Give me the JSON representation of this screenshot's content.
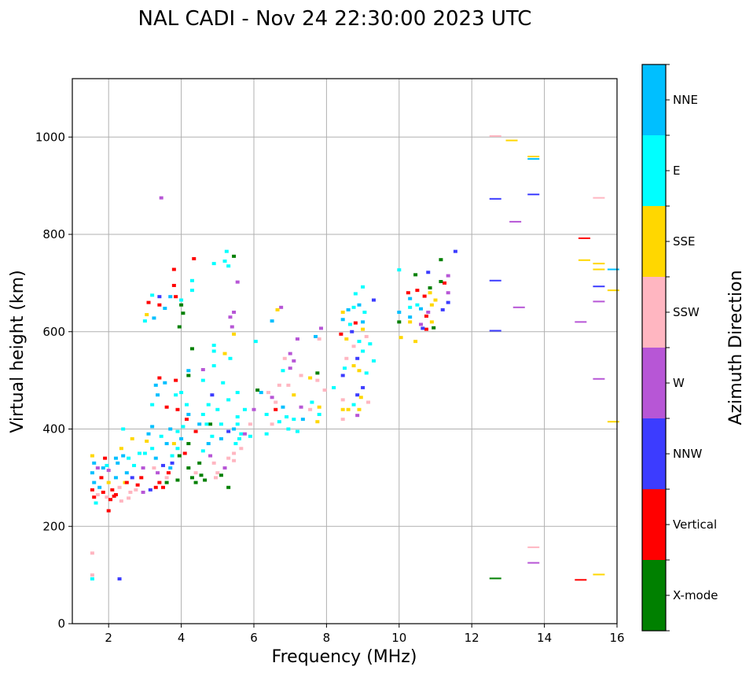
{
  "chart_data": {
    "type": "scatter",
    "title": "NAL CADI - Nov 24 22:30:00 2023 UTC",
    "xlabel": "Frequency (MHz)",
    "ylabel": "Virtual height (km)",
    "xlim": [
      1,
      16
    ],
    "ylim": [
      0,
      1120
    ],
    "xticks": [
      2,
      4,
      6,
      8,
      10,
      12,
      14,
      16
    ],
    "yticks": [
      0,
      200,
      400,
      600,
      800,
      1000
    ],
    "grid": true,
    "colorbar": {
      "label": "Azimuth Direction",
      "categories": [
        {
          "name": "X-mode",
          "color": "#008000"
        },
        {
          "name": "Vertical",
          "color": "#ff0000"
        },
        {
          "name": "NNW",
          "color": "#3c3cff"
        },
        {
          "name": "W",
          "color": "#b756d6"
        },
        {
          "name": "SSW",
          "color": "#ffb6c1"
        },
        {
          "name": "SSE",
          "color": "#ffd700"
        },
        {
          "name": "E",
          "color": "#00ffff"
        },
        {
          "name": "NNE",
          "color": "#00bfff"
        }
      ]
    },
    "point_format": [
      "frequency_mhz",
      "height_km",
      "category_index"
    ],
    "points": [
      [
        1.55,
        145,
        4
      ],
      [
        1.55,
        100,
        4
      ],
      [
        1.55,
        92,
        6
      ],
      [
        2.3,
        92,
        2
      ],
      [
        3.45,
        875,
        3
      ],
      [
        12.65,
        1002,
        4
      ],
      [
        13.1,
        993,
        5
      ],
      [
        13.7,
        960,
        5
      ],
      [
        13.7,
        955,
        7
      ],
      [
        12.65,
        873,
        2
      ],
      [
        13.7,
        882,
        2
      ],
      [
        15.5,
        875,
        4
      ],
      [
        13.2,
        826,
        3
      ],
      [
        15.1,
        792,
        1
      ],
      [
        15.1,
        747,
        5
      ],
      [
        15.5,
        740,
        5
      ],
      [
        15.5,
        728,
        5
      ],
      [
        15.9,
        728,
        7
      ],
      [
        15.5,
        693,
        2
      ],
      [
        15.9,
        685,
        5
      ],
      [
        12.65,
        705,
        2
      ],
      [
        13.3,
        650,
        3
      ],
      [
        15.5,
        662,
        3
      ],
      [
        15.0,
        620,
        3
      ],
      [
        12.65,
        602,
        2
      ],
      [
        15.5,
        503,
        3
      ],
      [
        15.9,
        415,
        5
      ],
      [
        13.7,
        157,
        4
      ],
      [
        13.7,
        125,
        3
      ],
      [
        12.65,
        93,
        0
      ],
      [
        15.0,
        90,
        1
      ],
      [
        15.5,
        101,
        5
      ],
      [
        11.55,
        765,
        2
      ],
      [
        11.15,
        748,
        0
      ],
      [
        10.45,
        717,
        0
      ],
      [
        10.0,
        727,
        6
      ],
      [
        10.8,
        722,
        2
      ],
      [
        11.35,
        715,
        3
      ],
      [
        11.25,
        700,
        1
      ],
      [
        11.15,
        703,
        0
      ],
      [
        10.85,
        690,
        0
      ],
      [
        10.85,
        680,
        5
      ],
      [
        10.5,
        685,
        1
      ],
      [
        10.25,
        680,
        1
      ],
      [
        10.3,
        668,
        7
      ],
      [
        10.7,
        673,
        1
      ],
      [
        11.0,
        665,
        5
      ],
      [
        11.35,
        660,
        2
      ],
      [
        11.35,
        680,
        3
      ],
      [
        10.5,
        655,
        6
      ],
      [
        10.9,
        655,
        5
      ],
      [
        10.3,
        650,
        6
      ],
      [
        10.6,
        647,
        7
      ],
      [
        11.2,
        645,
        2
      ],
      [
        10.8,
        640,
        3
      ],
      [
        10.0,
        640,
        7
      ],
      [
        10.3,
        630,
        7
      ],
      [
        10.75,
        632,
        1
      ],
      [
        10.3,
        620,
        5
      ],
      [
        10.0,
        620,
        0
      ],
      [
        10.6,
        615,
        3
      ],
      [
        10.75,
        605,
        1
      ],
      [
        10.65,
        607,
        2
      ],
      [
        10.95,
        608,
        0
      ],
      [
        10.45,
        580,
        5
      ],
      [
        10.05,
        588,
        5
      ],
      [
        10.9,
        620,
        5
      ],
      [
        8.45,
        640,
        5
      ],
      [
        8.6,
        645,
        7
      ],
      [
        8.75,
        650,
        6
      ],
      [
        8.9,
        655,
        7
      ],
      [
        9.0,
        692,
        6
      ],
      [
        9.3,
        665,
        2
      ],
      [
        8.8,
        678,
        6
      ],
      [
        9.05,
        640,
        6
      ],
      [
        8.45,
        625,
        7
      ],
      [
        8.65,
        615,
        6
      ],
      [
        8.8,
        618,
        1
      ],
      [
        9.0,
        620,
        7
      ],
      [
        9.0,
        605,
        5
      ],
      [
        8.7,
        600,
        2
      ],
      [
        8.4,
        595,
        1
      ],
      [
        8.55,
        585,
        5
      ],
      [
        9.1,
        590,
        4
      ],
      [
        8.9,
        580,
        6
      ],
      [
        9.2,
        575,
        6
      ],
      [
        8.75,
        570,
        4
      ],
      [
        9.0,
        560,
        6
      ],
      [
        8.85,
        545,
        2
      ],
      [
        9.3,
        540,
        6
      ],
      [
        8.55,
        545,
        4
      ],
      [
        8.75,
        530,
        5
      ],
      [
        8.5,
        525,
        6
      ],
      [
        8.9,
        520,
        5
      ],
      [
        9.1,
        515,
        6
      ],
      [
        8.45,
        510,
        2
      ],
      [
        8.2,
        485,
        6
      ],
      [
        9.0,
        485,
        2
      ],
      [
        8.85,
        470,
        2
      ],
      [
        8.95,
        465,
        5
      ],
      [
        8.45,
        460,
        4
      ],
      [
        8.75,
        450,
        6
      ],
      [
        8.6,
        440,
        5
      ],
      [
        8.45,
        440,
        5
      ],
      [
        8.9,
        440,
        5
      ],
      [
        8.85,
        428,
        3
      ],
      [
        8.45,
        420,
        4
      ],
      [
        9.15,
        455,
        4
      ],
      [
        7.95,
        480,
        4
      ],
      [
        7.85,
        607,
        3
      ],
      [
        7.7,
        590,
        7
      ],
      [
        7.8,
        585,
        4
      ],
      [
        7.2,
        585,
        3
      ],
      [
        6.75,
        650,
        3
      ],
      [
        6.65,
        645,
        5
      ],
      [
        6.5,
        622,
        7
      ],
      [
        7.0,
        555,
        3
      ],
      [
        6.85,
        545,
        4
      ],
      [
        7.1,
        540,
        3
      ],
      [
        7.0,
        525,
        3
      ],
      [
        6.8,
        520,
        6
      ],
      [
        7.3,
        510,
        4
      ],
      [
        7.55,
        505,
        5
      ],
      [
        7.75,
        500,
        4
      ],
      [
        6.95,
        490,
        4
      ],
      [
        6.7,
        490,
        4
      ],
      [
        6.4,
        475,
        4
      ],
      [
        6.5,
        465,
        3
      ],
      [
        6.2,
        475,
        7
      ],
      [
        7.1,
        470,
        5
      ],
      [
        6.6,
        455,
        4
      ],
      [
        6.8,
        445,
        7
      ],
      [
        7.3,
        445,
        3
      ],
      [
        7.55,
        440,
        4
      ],
      [
        7.8,
        445,
        5
      ],
      [
        6.6,
        440,
        1
      ],
      [
        6.35,
        430,
        6
      ],
      [
        6.9,
        425,
        6
      ],
      [
        7.1,
        420,
        6
      ],
      [
        6.7,
        415,
        6
      ],
      [
        7.35,
        420,
        7
      ],
      [
        6.5,
        410,
        4
      ],
      [
        6.95,
        400,
        6
      ],
      [
        7.2,
        395,
        6
      ],
      [
        6.35,
        390,
        6
      ],
      [
        7.75,
        415,
        5
      ],
      [
        7.8,
        430,
        6
      ],
      [
        7.6,
        455,
        6
      ],
      [
        7.75,
        515,
        0
      ],
      [
        6.05,
        580,
        6
      ],
      [
        6.1,
        480,
        0
      ],
      [
        5.25,
        765,
        6
      ],
      [
        5.45,
        755,
        0
      ],
      [
        5.2,
        745,
        6
      ],
      [
        4.9,
        740,
        6
      ],
      [
        5.3,
        735,
        6
      ],
      [
        4.35,
        750,
        1
      ],
      [
        4.3,
        705,
        6
      ],
      [
        4.3,
        685,
        6
      ],
      [
        4.0,
        665,
        6
      ],
      [
        3.8,
        728,
        1
      ],
      [
        3.8,
        695,
        1
      ],
      [
        3.85,
        672,
        1
      ],
      [
        3.7,
        672,
        7
      ],
      [
        3.4,
        672,
        2
      ],
      [
        3.2,
        675,
        6
      ],
      [
        3.1,
        660,
        1
      ],
      [
        3.4,
        655,
        1
      ],
      [
        3.55,
        648,
        7
      ],
      [
        3.05,
        635,
        5
      ],
      [
        3.25,
        628,
        7
      ],
      [
        3.0,
        622,
        6
      ],
      [
        3.95,
        610,
        0
      ],
      [
        4.05,
        638,
        0
      ],
      [
        4.0,
        655,
        0
      ],
      [
        5.45,
        640,
        3
      ],
      [
        5.35,
        630,
        3
      ],
      [
        5.4,
        610,
        3
      ],
      [
        5.45,
        595,
        5
      ],
      [
        5.55,
        702,
        3
      ],
      [
        4.3,
        565,
        0
      ],
      [
        4.9,
        572,
        6
      ],
      [
        4.9,
        560,
        6
      ],
      [
        5.2,
        555,
        5
      ],
      [
        5.35,
        545,
        6
      ],
      [
        4.9,
        530,
        6
      ],
      [
        4.6,
        522,
        3
      ],
      [
        4.2,
        520,
        7
      ],
      [
        4.2,
        510,
        0
      ],
      [
        4.6,
        500,
        6
      ],
      [
        5.15,
        495,
        6
      ],
      [
        5.55,
        475,
        6
      ],
      [
        4.0,
        475,
        6
      ],
      [
        3.4,
        505,
        1
      ],
      [
        3.55,
        495,
        7
      ],
      [
        3.85,
        500,
        1
      ],
      [
        3.85,
        470,
        6
      ],
      [
        4.15,
        450,
        6
      ],
      [
        4.85,
        470,
        2
      ],
      [
        4.75,
        450,
        6
      ],
      [
        5.0,
        440,
        6
      ],
      [
        5.3,
        460,
        6
      ],
      [
        5.55,
        425,
        6
      ],
      [
        5.75,
        440,
        6
      ],
      [
        4.6,
        430,
        6
      ],
      [
        4.2,
        430,
        7
      ],
      [
        3.3,
        490,
        7
      ],
      [
        3.35,
        470,
        7
      ],
      [
        3.2,
        450,
        6
      ],
      [
        3.6,
        445,
        1
      ],
      [
        3.9,
        440,
        1
      ],
      [
        4.15,
        420,
        1
      ],
      [
        4.5,
        410,
        7
      ],
      [
        4.8,
        410,
        0
      ],
      [
        5.1,
        410,
        6
      ],
      [
        5.45,
        400,
        7
      ],
      [
        5.65,
        390,
        6
      ],
      [
        5.9,
        385,
        6
      ],
      [
        5.9,
        410,
        4
      ],
      [
        6.0,
        440,
        3
      ],
      [
        1.55,
        345,
        5
      ],
      [
        1.6,
        330,
        7
      ],
      [
        1.55,
        310,
        7
      ],
      [
        1.6,
        290,
        7
      ],
      [
        1.55,
        275,
        1
      ],
      [
        1.6,
        260,
        1
      ],
      [
        1.7,
        265,
        4
      ],
      [
        1.75,
        280,
        7
      ],
      [
        1.8,
        300,
        1
      ],
      [
        1.85,
        320,
        7
      ],
      [
        1.9,
        340,
        1
      ],
      [
        1.95,
        325,
        6
      ],
      [
        1.85,
        270,
        1
      ],
      [
        1.95,
        260,
        4
      ],
      [
        2.0,
        290,
        5
      ],
      [
        2.05,
        255,
        1
      ],
      [
        2.1,
        275,
        1
      ],
      [
        2.2,
        265,
        1
      ],
      [
        2.3,
        280,
        4
      ],
      [
        2.2,
        300,
        7
      ],
      [
        2.25,
        330,
        7
      ],
      [
        2.4,
        345,
        7
      ],
      [
        2.35,
        360,
        5
      ],
      [
        2.5,
        310,
        7
      ],
      [
        2.45,
        290,
        5
      ],
      [
        2.6,
        270,
        4
      ],
      [
        2.65,
        300,
        2
      ],
      [
        2.7,
        325,
        6
      ],
      [
        2.55,
        340,
        6
      ],
      [
        2.8,
        285,
        1
      ],
      [
        2.9,
        300,
        1
      ],
      [
        2.95,
        320,
        3
      ],
      [
        3.0,
        350,
        6
      ],
      [
        3.05,
        375,
        5
      ],
      [
        3.1,
        390,
        7
      ],
      [
        3.2,
        360,
        6
      ],
      [
        3.3,
        340,
        7
      ],
      [
        3.35,
        310,
        3
      ],
      [
        3.4,
        290,
        1
      ],
      [
        3.5,
        280,
        1
      ],
      [
        3.6,
        300,
        4
      ],
      [
        3.7,
        320,
        7
      ],
      [
        3.75,
        345,
        6
      ],
      [
        3.8,
        370,
        5
      ],
      [
        3.9,
        395,
        6
      ],
      [
        4.0,
        380,
        7
      ],
      [
        4.1,
        350,
        1
      ],
      [
        4.2,
        320,
        0
      ],
      [
        4.3,
        300,
        0
      ],
      [
        4.4,
        310,
        4
      ],
      [
        4.5,
        330,
        0
      ],
      [
        4.6,
        355,
        6
      ],
      [
        4.75,
        370,
        7
      ],
      [
        4.8,
        345,
        3
      ],
      [
        4.9,
        330,
        4
      ],
      [
        5.0,
        310,
        4
      ],
      [
        5.2,
        320,
        3
      ],
      [
        5.3,
        340,
        4
      ],
      [
        5.45,
        350,
        4
      ],
      [
        5.5,
        370,
        6
      ],
      [
        5.6,
        380,
        6
      ],
      [
        5.75,
        390,
        3
      ],
      [
        4.65,
        295,
        0
      ],
      [
        4.4,
        290,
        0
      ],
      [
        3.9,
        295,
        0
      ],
      [
        3.6,
        290,
        0
      ],
      [
        3.3,
        280,
        1
      ],
      [
        3.15,
        275,
        2
      ],
      [
        2.95,
        270,
        3
      ],
      [
        2.75,
        275,
        4
      ],
      [
        2.55,
        258,
        4
      ],
      [
        2.35,
        252,
        4
      ],
      [
        2.15,
        262,
        1
      ],
      [
        2.0,
        232,
        1
      ],
      [
        1.65,
        248,
        6
      ],
      [
        3.45,
        385,
        6
      ],
      [
        3.6,
        370,
        7
      ],
      [
        3.2,
        405,
        7
      ],
      [
        3.7,
        400,
        7
      ],
      [
        4.4,
        395,
        1
      ],
      [
        4.85,
        385,
        6
      ],
      [
        5.1,
        380,
        7
      ],
      [
        5.3,
        395,
        2
      ],
      [
        4.2,
        370,
        0
      ],
      [
        3.95,
        345,
        0
      ],
      [
        3.75,
        330,
        2
      ],
      [
        3.5,
        325,
        2
      ],
      [
        3.25,
        320,
        4
      ],
      [
        2.85,
        350,
        6
      ],
      [
        2.65,
        380,
        5
      ],
      [
        2.4,
        400,
        6
      ],
      [
        5.65,
        360,
        4
      ],
      [
        5.45,
        335,
        4
      ],
      [
        5.1,
        305,
        0
      ],
      [
        4.95,
        300,
        4
      ],
      [
        4.55,
        305,
        0
      ],
      [
        5.3,
        280,
        0
      ],
      [
        2.2,
        340,
        7
      ],
      [
        1.7,
        320,
        3
      ],
      [
        2.0,
        315,
        3
      ],
      [
        2.5,
        290,
        1
      ],
      [
        3.65,
        310,
        1
      ],
      [
        3.9,
        360,
        6
      ],
      [
        4.05,
        405,
        6
      ],
      [
        4.7,
        410,
        6
      ],
      [
        5.55,
        410,
        6
      ]
    ]
  }
}
